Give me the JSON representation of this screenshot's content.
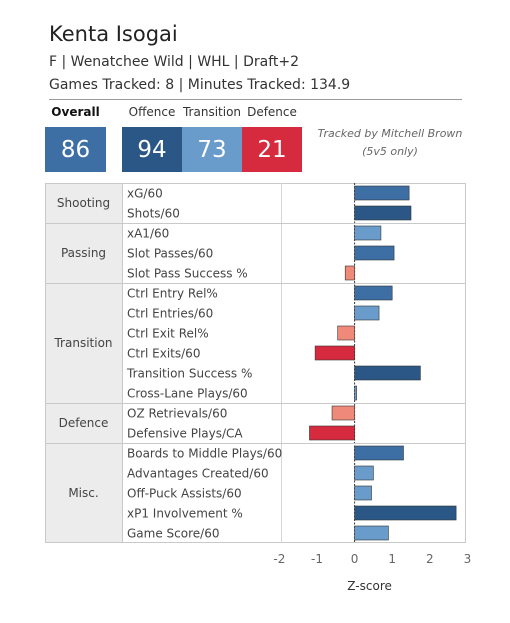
{
  "player": {
    "name": "Kenta Isogai",
    "line1": "F | Wenatchee Wild | WHL | Draft+2",
    "line2": "Games Tracked: 8 | Minutes Tracked: 134.9"
  },
  "ratings": {
    "overall_label": "Overall",
    "offence_label": "Offence",
    "transition_label": "Transition",
    "defence_label": "Defence",
    "overall": "86",
    "offence": "94",
    "transition": "73",
    "defence": "21",
    "colors": {
      "overall": "#3d6fa5",
      "offence": "#2a5785",
      "transition": "#6a9ccb",
      "defence": "#d62b3f"
    }
  },
  "credit": {
    "line1": "Tracked by Mitchell Brown",
    "line2": "(5v5 only)"
  },
  "chart_data": {
    "type": "bar",
    "orientation": "horizontal",
    "xlabel": "Z-score",
    "xlim": [
      -2,
      3
    ],
    "xticks": [
      "-2",
      "-1",
      "0",
      "1",
      "2",
      "3"
    ],
    "groups": [
      {
        "name": "Shooting",
        "metrics": [
          {
            "label": "xG/60",
            "value": 1.45
          },
          {
            "label": "Shots/60",
            "value": 1.5
          }
        ]
      },
      {
        "name": "Passing",
        "metrics": [
          {
            "label": "xA1/60",
            "value": 0.7
          },
          {
            "label": "Slot Passes/60",
            "value": 1.05
          },
          {
            "label": "Slot Pass Success %",
            "value": -0.25
          }
        ]
      },
      {
        "name": "Transition",
        "metrics": [
          {
            "label": "Ctrl Entry Rel%",
            "value": 1.0
          },
          {
            "label": "Ctrl Entries/60",
            "value": 0.65
          },
          {
            "label": "Ctrl Exit Rel%",
            "value": -0.45
          },
          {
            "label": "Ctrl Exits/60",
            "value": -1.05
          },
          {
            "label": "Transition Success %",
            "value": 1.75
          },
          {
            "label": "Cross-Lane Plays/60",
            "value": 0.05
          }
        ]
      },
      {
        "name": "Defence",
        "metrics": [
          {
            "label": "OZ Retrievals/60",
            "value": -0.6
          },
          {
            "label": "Defensive Plays/CA",
            "value": -1.2
          }
        ]
      },
      {
        "name": "Misc.",
        "metrics": [
          {
            "label": "Boards to Middle Plays/60",
            "value": 1.3
          },
          {
            "label": "Advantages Created/60",
            "value": 0.5
          },
          {
            "label": "Off-Puck Assists/60",
            "value": 0.45
          },
          {
            "label": "xP1 Involvement %",
            "value": 2.7
          },
          {
            "label": "Game Score/60",
            "value": 0.9
          }
        ]
      }
    ]
  }
}
